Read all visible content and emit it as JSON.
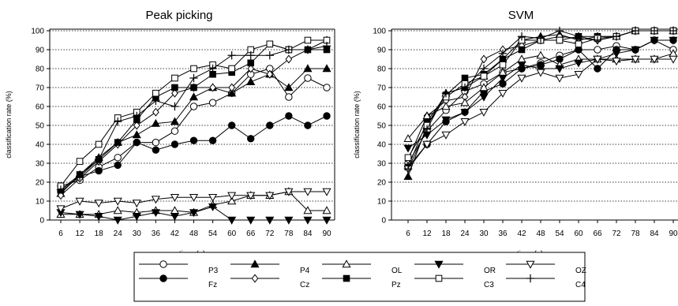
{
  "chart_data": [
    {
      "type": "line",
      "title": "Peak picking",
      "xlabel": "time (s)",
      "ylabel": "classification rate (%)",
      "x": [
        6,
        12,
        18,
        24,
        30,
        36,
        42,
        48,
        54,
        60,
        66,
        72,
        78,
        84,
        90
      ],
      "xlim": [
        6,
        90
      ],
      "ylim": [
        0,
        100
      ],
      "yticks": [
        0,
        10,
        20,
        30,
        40,
        50,
        60,
        70,
        80,
        90,
        100
      ],
      "grid": "horizontal dotted",
      "series": [
        {
          "name": "P3",
          "values": [
            18,
            21,
            28,
            33,
            41,
            41,
            47,
            60,
            62,
            67,
            77,
            80,
            65,
            75,
            70
          ]
        },
        {
          "name": "Fz",
          "values": [
            15,
            23,
            26,
            29,
            41,
            37,
            40,
            42,
            42,
            50,
            43,
            50,
            55,
            50,
            55
          ]
        },
        {
          "name": "P4",
          "values": [
            14,
            24,
            33,
            41,
            45,
            51,
            52,
            65,
            70,
            67,
            73,
            77,
            70,
            80,
            80
          ]
        },
        {
          "name": "Cz",
          "values": [
            13,
            22,
            31,
            40,
            50,
            57,
            67,
            70,
            70,
            70,
            80,
            77,
            85,
            90,
            95
          ]
        },
        {
          "name": "OL",
          "values": [
            3,
            3,
            3,
            5,
            4,
            5,
            5,
            4,
            8,
            10,
            13,
            13,
            15,
            5,
            5
          ]
        },
        {
          "name": "Pz",
          "values": [
            16,
            24,
            32,
            41,
            53,
            65,
            70,
            70,
            77,
            78,
            83,
            93,
            90,
            90,
            90
          ]
        },
        {
          "name": "OR",
          "values": [
            4,
            3,
            2,
            0,
            2,
            4,
            2,
            4,
            7,
            0,
            0,
            0,
            0,
            0,
            0
          ]
        },
        {
          "name": "C3",
          "values": [
            18,
            31,
            40,
            54,
            57,
            67,
            75,
            80,
            82,
            80,
            90,
            93,
            90,
            95,
            95
          ]
        },
        {
          "name": "OZ",
          "values": [
            6,
            10,
            9,
            10,
            9,
            11,
            12,
            12,
            12,
            13,
            13,
            13,
            15,
            15,
            15
          ]
        },
        {
          "name": "C4",
          "values": [
            16,
            23,
            32,
            52,
            55,
            63,
            60,
            75,
            80,
            87,
            87,
            87,
            90,
            90,
            92
          ]
        }
      ]
    },
    {
      "type": "line",
      "title": "SVM",
      "xlabel": "time (s)",
      "ylabel": "classification rate (%)",
      "x": [
        6,
        12,
        18,
        24,
        30,
        36,
        42,
        48,
        54,
        60,
        66,
        72,
        78,
        84,
        90
      ],
      "xlim": [
        6,
        90
      ],
      "ylim": [
        0,
        100
      ],
      "yticks": [
        0,
        10,
        20,
        30,
        40,
        50,
        60,
        70,
        80,
        90,
        100
      ],
      "grid": "horizontal dotted",
      "series": [
        {
          "name": "P3",
          "values": [
            30,
            47,
            58,
            68,
            72,
            78,
            80,
            83,
            87,
            90,
            90,
            92,
            90,
            95,
            90
          ]
        },
        {
          "name": "Fz",
          "values": [
            28,
            40,
            52,
            57,
            68,
            72,
            80,
            82,
            85,
            90,
            80,
            90,
            90,
            95,
            95
          ]
        },
        {
          "name": "P4",
          "values": [
            23,
            50,
            67,
            70,
            76,
            85,
            95,
            97,
            98,
            95,
            97,
            97,
            100,
            100,
            100
          ]
        },
        {
          "name": "Cz",
          "values": [
            32,
            55,
            63,
            65,
            85,
            90,
            92,
            95,
            97,
            96,
            95,
            97,
            100,
            100,
            100
          ]
        },
        {
          "name": "OL",
          "values": [
            43,
            55,
            60,
            62,
            70,
            78,
            85,
            87,
            82,
            85,
            85,
            85,
            85,
            85,
            88
          ]
        },
        {
          "name": "Pz",
          "values": [
            28,
            52,
            66,
            75,
            77,
            85,
            90,
            95,
            95,
            97,
            97,
            97,
            100,
            100,
            100
          ]
        },
        {
          "name": "OR",
          "values": [
            38,
            45,
            53,
            57,
            65,
            75,
            82,
            80,
            80,
            83,
            85,
            88,
            90,
            95,
            95
          ]
        },
        {
          "name": "C3",
          "values": [
            33,
            50,
            65,
            72,
            76,
            82,
            95,
            95,
            95,
            93,
            96,
            97,
            100,
            100,
            100
          ]
        },
        {
          "name": "OZ",
          "values": [
            27,
            40,
            45,
            52,
            57,
            67,
            75,
            78,
            75,
            77,
            85,
            84,
            85,
            85,
            85
          ]
        },
        {
          "name": "C4",
          "values": [
            27,
            48,
            67,
            70,
            80,
            88,
            97,
            96,
            100,
            97,
            95,
            97,
            100,
            100,
            100
          ]
        }
      ]
    }
  ],
  "legend": {
    "placement": "bottom",
    "items": [
      {
        "name": "P3",
        "marker": "circle-open"
      },
      {
        "name": "P4",
        "marker": "triangle-up-filled"
      },
      {
        "name": "OL",
        "marker": "triangle-up-open"
      },
      {
        "name": "OR",
        "marker": "triangle-down-filled"
      },
      {
        "name": "OZ",
        "marker": "triangle-down-open"
      },
      {
        "name": "Fz",
        "marker": "circle-filled"
      },
      {
        "name": "Cz",
        "marker": "diamond-open"
      },
      {
        "name": "Pz",
        "marker": "square-filled"
      },
      {
        "name": "C3",
        "marker": "square-open"
      },
      {
        "name": "C4",
        "marker": "plus"
      }
    ]
  },
  "colors": {
    "line": "#000000",
    "grid": "#000000",
    "background": "#ffffff"
  }
}
